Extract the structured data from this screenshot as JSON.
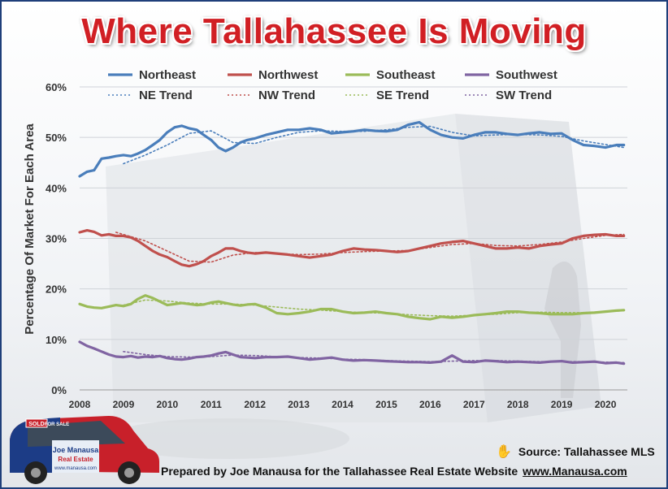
{
  "title": "Where Tallahassee Is Moving",
  "source_label": "Source: Tallahassee MLS",
  "footer_text": "Prepared by Joe Manausa for the Tallahassee Real Estate Website",
  "footer_url": "www.Manausa.com",
  "car": {
    "brand_line1": "Joe Manausa",
    "brand_line2": "Real Estate",
    "website": "www.manausa.com",
    "sign": "SOLD",
    "sign_small": "FOR SALE"
  },
  "colors": {
    "northeast": "#4a7ebb",
    "northwest": "#c0504d",
    "southeast": "#9bbb59",
    "southwest": "#8064a2"
  },
  "chart_data": {
    "type": "line",
    "title": "Where Tallahassee Is Moving",
    "xlabel": "",
    "ylabel": "Percentage Of Market For Each Area",
    "xlim": [
      2008,
      2020.5
    ],
    "ylim": [
      0,
      60
    ],
    "y_ticks": [
      "0%",
      "10%",
      "20%",
      "30%",
      "40%",
      "50%",
      "60%"
    ],
    "x_ticks": [
      "2008",
      "2009",
      "2010",
      "2011",
      "2012",
      "2013",
      "2014",
      "2015",
      "2016",
      "2017",
      "2018",
      "2019",
      "2020"
    ],
    "legend_position": "top",
    "legend": [
      "Northeast",
      "Northwest",
      "Southeast",
      "Southwest",
      "NE Trend",
      "NW Trend",
      "SE Trend",
      "SW Trend"
    ],
    "series": [
      {
        "name": "Northeast",
        "color": "#4a7ebb",
        "style": "solid",
        "x": [
          2008.0,
          2008.17,
          2008.33,
          2008.5,
          2008.67,
          2008.83,
          2009.0,
          2009.17,
          2009.33,
          2009.5,
          2009.67,
          2009.83,
          2010.0,
          2010.17,
          2010.33,
          2010.5,
          2010.67,
          2010.83,
          2011.0,
          2011.17,
          2011.33,
          2011.5,
          2011.67,
          2011.83,
          2012.0,
          2012.25,
          2012.5,
          2012.75,
          2013.0,
          2013.25,
          2013.5,
          2013.75,
          2014.0,
          2014.25,
          2014.5,
          2014.75,
          2015.0,
          2015.25,
          2015.5,
          2015.75,
          2016.0,
          2016.25,
          2016.5,
          2016.75,
          2017.0,
          2017.25,
          2017.5,
          2017.75,
          2018.0,
          2018.25,
          2018.5,
          2018.75,
          2019.0,
          2019.25,
          2019.5,
          2019.75,
          2020.0,
          2020.25,
          2020.42
        ],
        "y": [
          42.3,
          43.2,
          43.5,
          45.8,
          46.0,
          46.3,
          46.5,
          46.3,
          46.8,
          47.5,
          48.5,
          49.5,
          51.0,
          52.0,
          52.3,
          51.8,
          51.5,
          50.5,
          49.5,
          48.0,
          47.3,
          48.0,
          49.0,
          49.5,
          49.8,
          50.5,
          51.0,
          51.5,
          51.5,
          51.8,
          51.5,
          50.8,
          51.0,
          51.2,
          51.5,
          51.3,
          51.2,
          51.5,
          52.5,
          53.0,
          51.5,
          50.5,
          50.0,
          49.8,
          50.5,
          51.0,
          51.0,
          50.7,
          50.5,
          50.8,
          51.0,
          50.7,
          50.8,
          49.5,
          48.5,
          48.3,
          48.0,
          48.5,
          48.5
        ]
      },
      {
        "name": "Northwest",
        "color": "#c0504d",
        "style": "solid",
        "x": [
          2008.0,
          2008.17,
          2008.33,
          2008.5,
          2008.67,
          2008.83,
          2009.0,
          2009.17,
          2009.33,
          2009.5,
          2009.67,
          2009.83,
          2010.0,
          2010.17,
          2010.33,
          2010.5,
          2010.67,
          2010.83,
          2011.0,
          2011.17,
          2011.33,
          2011.5,
          2011.67,
          2011.83,
          2012.0,
          2012.25,
          2012.5,
          2012.75,
          2013.0,
          2013.25,
          2013.5,
          2013.75,
          2014.0,
          2014.25,
          2014.5,
          2014.75,
          2015.0,
          2015.25,
          2015.5,
          2015.75,
          2016.0,
          2016.25,
          2016.5,
          2016.75,
          2017.0,
          2017.25,
          2017.5,
          2017.75,
          2018.0,
          2018.25,
          2018.5,
          2018.75,
          2019.0,
          2019.25,
          2019.5,
          2019.75,
          2020.0,
          2020.25,
          2020.42
        ],
        "y": [
          31.2,
          31.6,
          31.3,
          30.6,
          30.8,
          30.5,
          30.5,
          30.2,
          29.5,
          28.5,
          27.5,
          26.8,
          26.3,
          25.5,
          24.8,
          24.5,
          24.9,
          25.5,
          26.5,
          27.2,
          28.0,
          28.0,
          27.5,
          27.2,
          27.0,
          27.2,
          27.0,
          26.8,
          26.5,
          26.2,
          26.5,
          26.8,
          27.5,
          28.0,
          27.8,
          27.7,
          27.5,
          27.3,
          27.5,
          28.0,
          28.5,
          29.0,
          29.3,
          29.5,
          29.0,
          28.5,
          28.0,
          28.0,
          28.2,
          28.0,
          28.5,
          28.8,
          29.0,
          30.0,
          30.5,
          30.7,
          30.8,
          30.5,
          30.5
        ]
      },
      {
        "name": "Southeast",
        "color": "#9bbb59",
        "style": "solid",
        "x": [
          2008.0,
          2008.17,
          2008.33,
          2008.5,
          2008.67,
          2008.83,
          2009.0,
          2009.17,
          2009.33,
          2009.5,
          2009.67,
          2009.83,
          2010.0,
          2010.17,
          2010.33,
          2010.5,
          2010.67,
          2010.83,
          2011.0,
          2011.17,
          2011.33,
          2011.5,
          2011.67,
          2011.83,
          2012.0,
          2012.25,
          2012.5,
          2012.75,
          2013.0,
          2013.25,
          2013.5,
          2013.75,
          2014.0,
          2014.25,
          2014.5,
          2014.75,
          2015.0,
          2015.25,
          2015.5,
          2015.75,
          2016.0,
          2016.25,
          2016.5,
          2016.75,
          2017.0,
          2017.25,
          2017.5,
          2017.75,
          2018.0,
          2018.25,
          2018.5,
          2018.75,
          2019.0,
          2019.25,
          2019.5,
          2019.75,
          2020.0,
          2020.25,
          2020.42
        ],
        "y": [
          17.0,
          16.5,
          16.3,
          16.2,
          16.5,
          16.8,
          16.6,
          17.0,
          18.0,
          18.7,
          18.2,
          17.5,
          16.8,
          17.0,
          17.2,
          17.0,
          16.8,
          16.9,
          17.3,
          17.5,
          17.2,
          16.9,
          16.7,
          16.9,
          17.0,
          16.3,
          15.2,
          15.0,
          15.2,
          15.5,
          16.0,
          16.0,
          15.5,
          15.2,
          15.3,
          15.5,
          15.2,
          15.0,
          14.5,
          14.2,
          14.0,
          14.5,
          14.3,
          14.5,
          14.8,
          15.0,
          15.2,
          15.5,
          15.5,
          15.3,
          15.2,
          15.0,
          15.0,
          15.0,
          15.2,
          15.3,
          15.5,
          15.7,
          15.8
        ]
      },
      {
        "name": "Southwest",
        "color": "#8064a2",
        "style": "solid",
        "x": [
          2008.0,
          2008.17,
          2008.33,
          2008.5,
          2008.67,
          2008.83,
          2009.0,
          2009.17,
          2009.33,
          2009.5,
          2009.67,
          2009.83,
          2010.0,
          2010.17,
          2010.33,
          2010.5,
          2010.67,
          2010.83,
          2011.0,
          2011.17,
          2011.33,
          2011.5,
          2011.67,
          2011.83,
          2012.0,
          2012.25,
          2012.5,
          2012.75,
          2013.0,
          2013.25,
          2013.5,
          2013.75,
          2014.0,
          2014.25,
          2014.5,
          2014.75,
          2015.0,
          2015.25,
          2015.5,
          2015.75,
          2016.0,
          2016.25,
          2016.5,
          2016.75,
          2017.0,
          2017.25,
          2017.5,
          2017.75,
          2018.0,
          2018.25,
          2018.5,
          2018.75,
          2019.0,
          2019.25,
          2019.5,
          2019.75,
          2020.0,
          2020.25,
          2020.42
        ],
        "y": [
          9.5,
          8.7,
          8.2,
          7.6,
          7.0,
          6.6,
          6.5,
          6.7,
          6.4,
          6.6,
          6.5,
          6.7,
          6.3,
          6.1,
          6.0,
          6.2,
          6.5,
          6.6,
          6.8,
          7.2,
          7.5,
          7.0,
          6.5,
          6.4,
          6.3,
          6.5,
          6.5,
          6.6,
          6.3,
          6.0,
          6.2,
          6.4,
          6.0,
          5.8,
          5.9,
          5.8,
          5.7,
          5.6,
          5.5,
          5.5,
          5.4,
          5.6,
          6.8,
          5.6,
          5.5,
          5.8,
          5.7,
          5.5,
          5.6,
          5.5,
          5.4,
          5.6,
          5.7,
          5.4,
          5.5,
          5.6,
          5.3,
          5.4,
          5.2
        ]
      },
      {
        "name": "NE Trend",
        "color": "#4a7ebb",
        "style": "dotted",
        "x": [
          2009.0,
          2009.5,
          2010.0,
          2010.5,
          2011.0,
          2011.5,
          2012.0,
          2012.5,
          2013.0,
          2013.5,
          2014.0,
          2014.5,
          2015.0,
          2015.5,
          2016.0,
          2016.5,
          2017.0,
          2017.5,
          2018.0,
          2018.5,
          2019.0,
          2019.5,
          2020.0,
          2020.42
        ],
        "y": [
          44.8,
          46.5,
          48.5,
          50.8,
          51.3,
          49.0,
          48.8,
          50.0,
          51.0,
          51.3,
          51.2,
          51.2,
          51.5,
          52.0,
          52.2,
          51.0,
          50.3,
          50.5,
          50.6,
          50.5,
          50.2,
          49.3,
          48.6,
          48.0
        ]
      },
      {
        "name": "NW Trend",
        "color": "#c0504d",
        "style": "dotted",
        "x": [
          2008.83,
          2009.5,
          2010.0,
          2010.5,
          2011.0,
          2011.5,
          2012.0,
          2012.5,
          2013.0,
          2013.5,
          2014.0,
          2014.5,
          2015.0,
          2015.5,
          2016.0,
          2016.5,
          2017.0,
          2017.5,
          2018.0,
          2018.5,
          2019.0,
          2019.5,
          2020.0,
          2020.42
        ],
        "y": [
          31.2,
          29.5,
          27.5,
          25.5,
          25.3,
          26.7,
          27.2,
          27.0,
          26.8,
          26.9,
          27.2,
          27.4,
          27.5,
          27.6,
          28.2,
          28.8,
          29.0,
          28.6,
          28.5,
          28.8,
          29.3,
          30.0,
          30.6,
          30.8
        ]
      },
      {
        "name": "SE Trend",
        "color": "#9bbb59",
        "style": "dotted",
        "x": [
          2009.0,
          2009.5,
          2010.0,
          2010.5,
          2011.0,
          2011.5,
          2012.0,
          2012.5,
          2013.0,
          2013.5,
          2014.0,
          2014.5,
          2015.0,
          2015.5,
          2016.0,
          2016.5,
          2017.0,
          2017.5,
          2018.0,
          2018.5,
          2019.0,
          2019.5,
          2020.0,
          2020.42
        ],
        "y": [
          16.8,
          17.8,
          17.6,
          17.2,
          17.0,
          17.0,
          16.8,
          16.4,
          16.0,
          15.8,
          15.5,
          15.3,
          15.2,
          14.9,
          14.7,
          14.6,
          14.8,
          15.0,
          15.3,
          15.4,
          15.3,
          15.3,
          15.5,
          15.7
        ]
      },
      {
        "name": "SW Trend",
        "color": "#8064a2",
        "style": "dotted",
        "x": [
          2009.0,
          2009.5,
          2010.0,
          2010.5,
          2011.0,
          2011.5,
          2012.0,
          2012.5,
          2013.0,
          2013.5,
          2014.0,
          2014.5,
          2015.0,
          2015.5,
          2016.0,
          2016.5,
          2017.0,
          2017.5,
          2018.0,
          2018.5,
          2019.0,
          2019.5,
          2020.0,
          2020.42
        ],
        "y": [
          7.6,
          7.0,
          6.6,
          6.5,
          6.6,
          6.9,
          6.8,
          6.6,
          6.4,
          6.3,
          6.1,
          6.0,
          5.8,
          5.7,
          5.6,
          5.7,
          5.8,
          5.8,
          5.7,
          5.6,
          5.6,
          5.6,
          5.5,
          5.4
        ]
      }
    ]
  }
}
